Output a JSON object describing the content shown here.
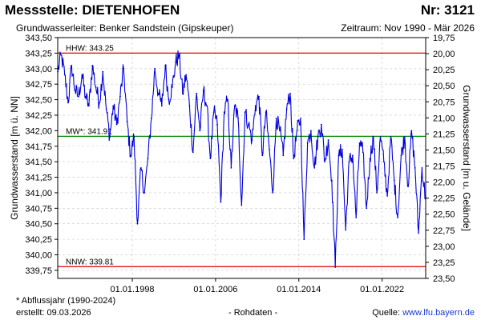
{
  "header": {
    "title": "Messstelle: DIETENHOFEN",
    "nr": "Nr: 3121",
    "aquifer": "Grundwasserleiter:   Benker Sandstein (Gipskeuper)",
    "period": "Zeitraum: Nov 1990 - Mär 2026"
  },
  "footer": {
    "footnote": "* Abflussjahr (1990-2024)",
    "created": "erstellt:  09.03.2026",
    "rawdata": "- Rohdaten -",
    "source_label": "Quelle: ",
    "source_url": "www.lfu.bayern.de"
  },
  "colors": {
    "series": "#0000dd",
    "extreme_lines": "#dd0000",
    "mean_line": "#008800",
    "grid": "#c8c8c8"
  },
  "chart_data": {
    "type": "line",
    "xlabel": "",
    "ylabel": "Grundwasserstand [m ü. NN]",
    "y2label": "Grundwasserstand [m u. Gelände]",
    "xlim": [
      "1990-11-01",
      "2026-03-09"
    ],
    "ylim": [
      339.62,
      343.5
    ],
    "y2lim": [
      19.75,
      23.5
    ],
    "y2_inverted": true,
    "grid": true,
    "x_ticks": [
      "01.01.1998",
      "01.01.2006",
      "01.01.2014",
      "01.01.2022"
    ],
    "y_ticks": [
      "343,50",
      "343,25",
      "343,00",
      "342,75",
      "342,50",
      "342,25",
      "342,00",
      "341,75",
      "341,50",
      "341,25",
      "341,00",
      "340,75",
      "340,50",
      "340,25",
      "340,00",
      "339,75"
    ],
    "y2_ticks": [
      "19,75",
      "20,00",
      "20,25",
      "20,50",
      "20,75",
      "21,00",
      "21,25",
      "21,50",
      "21,75",
      "22,00",
      "22,25",
      "22,50",
      "22,75",
      "23,00",
      "23,25",
      "23,50"
    ],
    "reference_lines": [
      {
        "label": "HHW: 343.25",
        "value": 343.25,
        "kind": "max"
      },
      {
        "label": "MW*: 341.91",
        "value": 341.91,
        "kind": "mean"
      },
      {
        "label": "NNW: 339.81",
        "value": 339.81,
        "kind": "min"
      }
    ],
    "series": [
      {
        "x": [
          "1990-11",
          "1991-03",
          "1991-07",
          "1991-11",
          "1992-03",
          "1992-07",
          "1992-11",
          "1993-03",
          "1993-07",
          "1993-11",
          "1994-03",
          "1994-07",
          "1994-11",
          "1995-03",
          "1995-07",
          "1995-11",
          "1996-03",
          "1996-07",
          "1996-11",
          "1997-03",
          "1997-07",
          "1997-11",
          "1998-03",
          "1998-07",
          "1998-11",
          "1999-03",
          "1999-07",
          "1999-11",
          "2000-03",
          "2000-07",
          "2000-11",
          "2001-03",
          "2001-07",
          "2001-11",
          "2002-03",
          "2002-07",
          "2002-11",
          "2003-03",
          "2003-07",
          "2003-11",
          "2004-03",
          "2004-07",
          "2004-11",
          "2005-03",
          "2005-07",
          "2005-11",
          "2006-03",
          "2006-07",
          "2006-11",
          "2007-03",
          "2007-07",
          "2007-11",
          "2008-03",
          "2008-07",
          "2008-11",
          "2009-03",
          "2009-07",
          "2009-11",
          "2010-03",
          "2010-07",
          "2010-11",
          "2011-03",
          "2011-07",
          "2011-11",
          "2012-03",
          "2012-07",
          "2012-11",
          "2013-03",
          "2013-07",
          "2013-11",
          "2014-03",
          "2014-07",
          "2014-11",
          "2015-03",
          "2015-07",
          "2015-11",
          "2016-03",
          "2016-07",
          "2016-11",
          "2017-03",
          "2017-07",
          "2017-11",
          "2018-03",
          "2018-07",
          "2018-11",
          "2019-03",
          "2019-07",
          "2019-11",
          "2020-03",
          "2020-07",
          "2020-11",
          "2021-03",
          "2021-07",
          "2021-11",
          "2022-03",
          "2022-07",
          "2022-11",
          "2023-03",
          "2023-07",
          "2023-11",
          "2024-03",
          "2024-07",
          "2024-11",
          "2025-03",
          "2025-07",
          "2025-11",
          "2026-03"
        ],
        "values": [
          342.95,
          343.22,
          342.9,
          342.45,
          343.05,
          342.65,
          342.55,
          342.9,
          342.55,
          342.4,
          343.05,
          342.7,
          342.45,
          342.95,
          342.35,
          341.9,
          342.4,
          342.1,
          342.55,
          343.0,
          342.15,
          341.6,
          341.9,
          340.5,
          341.4,
          341.0,
          341.55,
          342.2,
          343.0,
          342.6,
          342.4,
          343.05,
          342.5,
          342.7,
          343.1,
          343.22,
          342.6,
          342.9,
          342.4,
          341.65,
          342.6,
          342.0,
          342.65,
          342.4,
          341.55,
          342.3,
          342.1,
          340.85,
          342.3,
          342.5,
          341.4,
          342.4,
          342.2,
          340.8,
          342.3,
          342.1,
          341.85,
          342.4,
          342.55,
          341.6,
          342.3,
          341.7,
          341.0,
          342.2,
          342.0,
          341.6,
          342.35,
          342.6,
          341.55,
          342.0,
          342.2,
          340.25,
          341.8,
          342.0,
          341.4,
          341.9,
          342.1,
          341.5,
          341.85,
          341.2,
          339.8,
          341.6,
          341.7,
          340.4,
          341.5,
          341.6,
          340.6,
          341.8,
          341.65,
          340.75,
          341.55,
          341.9,
          341.0,
          341.9,
          341.5,
          340.95,
          341.9,
          341.2,
          340.6,
          341.6,
          341.9,
          341.1,
          342.0,
          341.4,
          340.35,
          341.4,
          340.9
        ]
      }
    ]
  }
}
